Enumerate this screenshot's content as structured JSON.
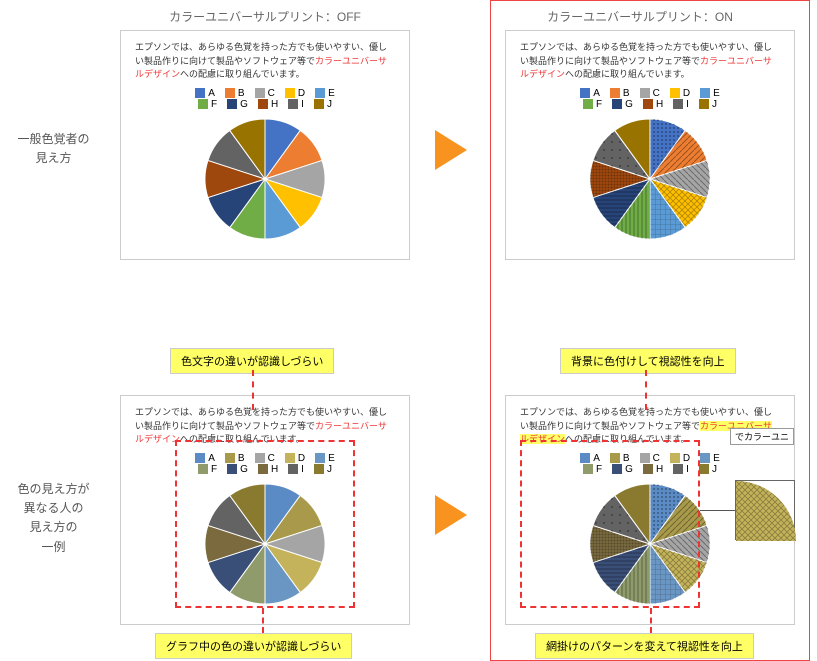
{
  "columns": {
    "off_title": "カラーユニバーサルプリント：OFF",
    "on_title": "カラーユニバーサルプリント：ON"
  },
  "rows": {
    "top_label": "一般色覚者の\n見え方",
    "bottom_label": "色の見え方が\n異なる人の\n見え方の\n一例"
  },
  "desc": {
    "before_hl": "エプソンでは、あらゆる色覚を持った方でも使いやすい、優しい製品作りに向けて製品やソフトウェア等で",
    "hl": "カラーユニバーサルデザイン",
    "after_hl": "への配慮に取り組んでいます。"
  },
  "legend": {
    "labels": [
      "A",
      "B",
      "C",
      "D",
      "E",
      "F",
      "G",
      "H",
      "I",
      "J"
    ]
  },
  "pie": {
    "type": "pie",
    "values": [
      1,
      1,
      1,
      1,
      1,
      1,
      1,
      1,
      1,
      1
    ],
    "colors_normal": [
      "#4472c4",
      "#ed7d31",
      "#a5a5a5",
      "#ffc000",
      "#5b9bd5",
      "#70ad47",
      "#264478",
      "#9e480e",
      "#636363",
      "#997300"
    ],
    "colors_cvd": [
      "#5b8bc4",
      "#a89a4a",
      "#a5a5a5",
      "#c4b35a",
      "#6a96c4",
      "#8f9b6a",
      "#3a4f78",
      "#7a6a3e",
      "#636363",
      "#8a7a30"
    ],
    "radius": 60
  },
  "legend_colors_normal": [
    "#4472c4",
    "#ed7d31",
    "#a5a5a5",
    "#ffc000",
    "#5b9bd5",
    "#70ad47",
    "#264478",
    "#9e480e",
    "#636363",
    "#997300"
  ],
  "legend_colors_cvd": [
    "#5b8bc4",
    "#a89a4a",
    "#a5a5a5",
    "#c4b35a",
    "#6a96c4",
    "#8f9b6a",
    "#3a4f78",
    "#7a6a3e",
    "#636363",
    "#8a7a30"
  ],
  "callouts": {
    "text_issue": "色文字の違いが認識しづらい",
    "graph_issue": "グラフ中の色の違いが認識しづらい",
    "bg_improve": "背景に色付けして視認性を向上",
    "pattern_improve": "網掛けのパターンを変えて視認性を向上"
  },
  "tooltip_text": "カラーユニ",
  "patterns": [
    "dots",
    "diag1",
    "diag2",
    "cross",
    "grid",
    "vlines",
    "hlines",
    "dense",
    "sparse",
    "none"
  ]
}
